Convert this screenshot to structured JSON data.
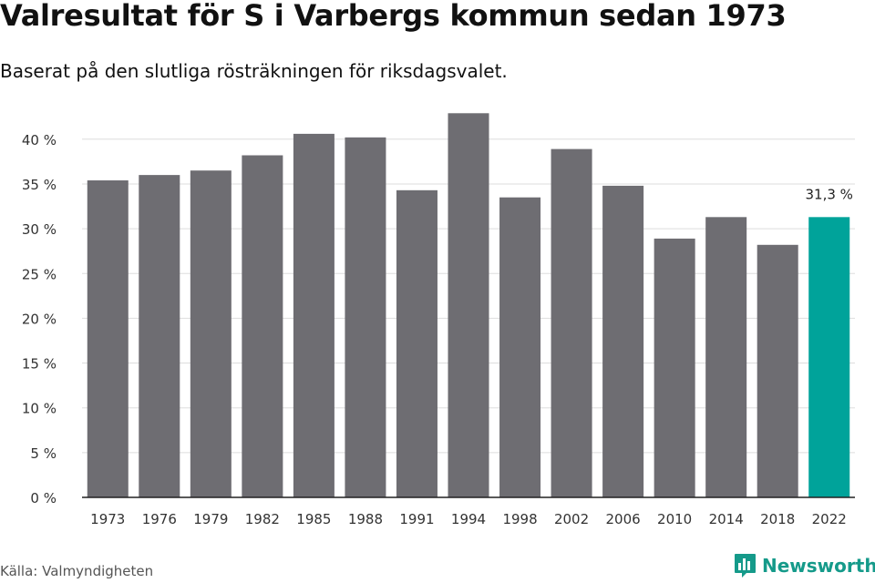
{
  "header": {
    "title": "Valresultat för S i Varbergs kommun sedan 1973",
    "subtitle": "Baserat på den slutliga rösträkningen för riksdagsvalet."
  },
  "footer": {
    "source": "Källa: Valmyndigheten",
    "brand": "Newsworthy",
    "brand_icon": "newsworthy-logo-icon"
  },
  "colors": {
    "bar": "#6e6d72",
    "highlight": "#00a39a",
    "grid": "#dddddd",
    "axis": "#222222",
    "brand": "#159a8a"
  },
  "chart_data": {
    "type": "bar",
    "title": "Valresultat för S i Varbergs kommun sedan 1973",
    "subtitle": "Baserat på den slutliga rösträkningen för riksdagsvalet.",
    "categories": [
      "1973",
      "1976",
      "1979",
      "1982",
      "1985",
      "1988",
      "1991",
      "1994",
      "1998",
      "2002",
      "2006",
      "2010",
      "2014",
      "2018",
      "2022"
    ],
    "values": [
      35.4,
      36.0,
      36.5,
      38.2,
      40.6,
      40.2,
      34.3,
      42.9,
      33.5,
      38.9,
      34.8,
      28.9,
      31.3,
      28.2,
      31.3
    ],
    "unit": "%",
    "yticks": [
      0,
      5,
      10,
      15,
      20,
      25,
      30,
      35,
      40
    ],
    "ytick_labels": [
      "0 %",
      "5 %",
      "10 %",
      "15 %",
      "20 %",
      "25 %",
      "30 %",
      "35 %",
      "40 %"
    ],
    "ylim": [
      0,
      45
    ],
    "grid": true,
    "legend": false,
    "highlighted_category": "2022",
    "data_labels": [
      {
        "category": "2022",
        "text": "31,3 %"
      }
    ]
  }
}
